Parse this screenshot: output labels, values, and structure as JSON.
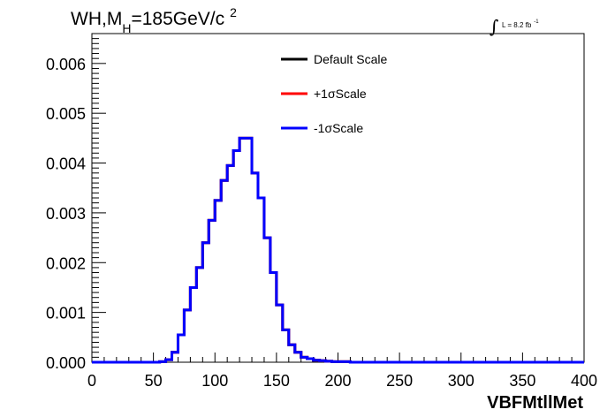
{
  "chart_data": {
    "type": "step",
    "title": {
      "prefix": "WH,M",
      "subscript": "H",
      "suffix": "=185GeV/c",
      "superscript": "2"
    },
    "lumi": {
      "text": "L = 8.2 fb",
      "superscript": "-1"
    },
    "xlabel": "VBFMtllMet",
    "ylabel": "",
    "xlim": [
      0,
      400
    ],
    "ylim": [
      0,
      0.0066
    ],
    "x_ticks": [
      {
        "value": 0,
        "label": "0"
      },
      {
        "value": 50,
        "label": "50"
      },
      {
        "value": 100,
        "label": "100"
      },
      {
        "value": 150,
        "label": "150"
      },
      {
        "value": 200,
        "label": "200"
      },
      {
        "value": 250,
        "label": "250"
      },
      {
        "value": 300,
        "label": "300"
      },
      {
        "value": 350,
        "label": "350"
      },
      {
        "value": 400,
        "label": "400"
      }
    ],
    "y_ticks": [
      {
        "value": 0,
        "label": "0.000"
      },
      {
        "value": 0.001,
        "label": "0.001"
      },
      {
        "value": 0.002,
        "label": "0.002"
      },
      {
        "value": 0.003,
        "label": "0.003"
      },
      {
        "value": 0.004,
        "label": "0.004"
      },
      {
        "value": 0.005,
        "label": "0.005"
      },
      {
        "value": 0.006,
        "label": "0.006"
      }
    ],
    "bin_edges": [
      0,
      5,
      10,
      15,
      20,
      25,
      30,
      35,
      40,
      45,
      50,
      55,
      60,
      65,
      70,
      75,
      80,
      85,
      90,
      95,
      100,
      105,
      110,
      115,
      120,
      125,
      130,
      135,
      140,
      145,
      150,
      155,
      160,
      165,
      170,
      175,
      180,
      185,
      190,
      195,
      200,
      205,
      210,
      215,
      220,
      225,
      230,
      235,
      240,
      245,
      250,
      255,
      260,
      265,
      270,
      275,
      280,
      285,
      290,
      295,
      300,
      305,
      310,
      315,
      320,
      325,
      330,
      335,
      340,
      345,
      350,
      355,
      360,
      365,
      370,
      375,
      380,
      385,
      390,
      395,
      400
    ],
    "series": [
      {
        "name": "Default Scale",
        "color": "#000000",
        "values": [
          0,
          0,
          0,
          0,
          0,
          0,
          0,
          0,
          0,
          0,
          0,
          1e-05,
          5e-05,
          0.0002,
          0.00055,
          0.00105,
          0.0015,
          0.0019,
          0.0024,
          0.00285,
          0.00325,
          0.00365,
          0.00395,
          0.00425,
          0.0045,
          0.0045,
          0.0038,
          0.0033,
          0.0025,
          0.0018,
          0.00115,
          0.00065,
          0.00035,
          0.0002,
          0.0001,
          7e-05,
          4e-05,
          3e-05,
          2e-05,
          1e-05,
          1e-05,
          1e-05,
          0,
          0,
          0,
          0,
          0,
          0,
          0,
          0,
          0,
          0,
          0,
          0,
          0,
          0,
          0,
          0,
          0,
          0,
          0,
          0,
          0,
          0,
          0,
          0,
          0,
          0,
          0,
          0,
          0,
          0,
          0,
          0,
          0,
          0,
          0,
          0,
          0,
          0
        ]
      },
      {
        "name": "+1σScale",
        "color": "#ff0000",
        "values": [
          0,
          0,
          0,
          0,
          0,
          0,
          0,
          0,
          0,
          0,
          0,
          1e-05,
          5e-05,
          0.0002,
          0.00055,
          0.00105,
          0.0015,
          0.0019,
          0.0024,
          0.00285,
          0.00325,
          0.00365,
          0.00395,
          0.00425,
          0.0045,
          0.0045,
          0.0038,
          0.0033,
          0.0025,
          0.0018,
          0.00115,
          0.00065,
          0.00035,
          0.0002,
          0.0001,
          7e-05,
          4e-05,
          3e-05,
          2e-05,
          1e-05,
          1e-05,
          1e-05,
          0,
          0,
          0,
          0,
          0,
          0,
          0,
          0,
          0,
          0,
          0,
          0,
          0,
          0,
          0,
          0,
          0,
          0,
          0,
          0,
          0,
          0,
          0,
          0,
          0,
          0,
          0,
          0,
          0,
          0,
          0,
          0,
          0,
          0,
          0,
          0,
          0,
          0
        ]
      },
      {
        "name": "-1σScale",
        "color": "#0000ff",
        "values": [
          0,
          0,
          0,
          0,
          0,
          0,
          0,
          0,
          0,
          0,
          0,
          1e-05,
          5e-05,
          0.0002,
          0.00055,
          0.00105,
          0.0015,
          0.0019,
          0.0024,
          0.00285,
          0.00325,
          0.00365,
          0.00395,
          0.00425,
          0.0045,
          0.0045,
          0.0038,
          0.0033,
          0.0025,
          0.0018,
          0.00115,
          0.00065,
          0.00035,
          0.0002,
          0.0001,
          7e-05,
          4e-05,
          3e-05,
          2e-05,
          1e-05,
          1e-05,
          1e-05,
          0,
          0,
          0,
          0,
          0,
          0,
          0,
          0,
          0,
          0,
          0,
          0,
          0,
          0,
          0,
          0,
          0,
          0,
          0,
          0,
          0,
          0,
          0,
          0,
          0,
          0,
          0,
          0,
          0,
          0,
          0,
          0,
          0,
          0,
          0,
          0,
          0,
          0
        ]
      }
    ],
    "legend": {
      "position": "top-center",
      "entries": [
        {
          "label": "Default Scale",
          "color": "#000000"
        },
        {
          "label": "+1σScale",
          "color": "#ff0000"
        },
        {
          "label": "-1σScale",
          "color": "#0000ff"
        }
      ]
    },
    "grid": false
  }
}
